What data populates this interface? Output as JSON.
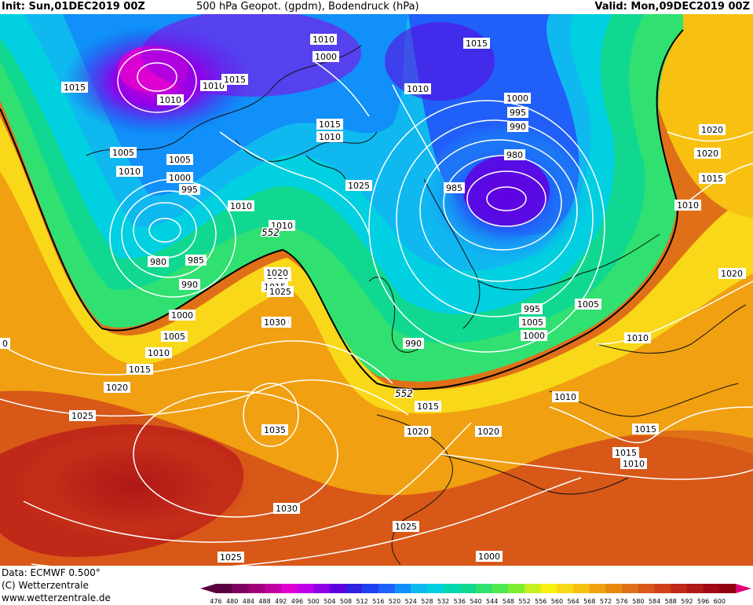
{
  "header": {
    "init": "Init: Sun,01DEC2019 00Z",
    "title": "500 hPa Geopot. (gpdm), Bodendruck (hPa)",
    "valid": "Valid: Mon,09DEC2019 00Z"
  },
  "footer": {
    "data": "Data: ECMWF   0.500°",
    "copyright": "(C) Wetterzentrale",
    "url": "www.wetterzentrale.de"
  },
  "colorbar": {
    "levels": [
      "476",
      "480",
      "484",
      "488",
      "492",
      "496",
      "500",
      "504",
      "508",
      "512",
      "516",
      "520",
      "524",
      "528",
      "532",
      "536",
      "540",
      "544",
      "548",
      "552",
      "556",
      "560",
      "564",
      "568",
      "572",
      "576",
      "580",
      "584",
      "588",
      "592",
      "596",
      "600"
    ],
    "colors": [
      "#5a0040",
      "#800060",
      "#a0007a",
      "#c000a0",
      "#e000d0",
      "#c000e8",
      "#9000e8",
      "#6000e0",
      "#3020e0",
      "#2040f0",
      "#2060f8",
      "#1090f8",
      "#10b8f0",
      "#00d0e0",
      "#00d8b0",
      "#10d890",
      "#30e070",
      "#50e850",
      "#80ee30",
      "#c8f020",
      "#f8f010",
      "#f8d818",
      "#f8c010",
      "#f0a010",
      "#e88810",
      "#e07018",
      "#d85818",
      "#d04018",
      "#c02818",
      "#b01818",
      "#a00818",
      "#900010"
    ],
    "arrow_left_color": "#5a0040",
    "arrow_right_color": "#e0007a"
  },
  "map": {
    "isobar_labels": [
      "1015",
      "1010",
      "1000",
      "1010",
      "1015",
      "1010",
      "1015",
      "1010",
      "1000",
      "995",
      "990",
      "980",
      "985",
      "1005",
      "1010",
      "1005",
      "1000",
      "995",
      "1010",
      "1015",
      "1010",
      "980",
      "985",
      "990",
      "1000",
      "1005",
      "1010",
      "1015",
      "1020",
      "1025",
      "1030",
      "1035",
      "1030",
      "1025",
      "1020",
      "1015",
      "1010",
      "1005",
      "1000",
      "995",
      "990",
      "1000",
      "1005",
      "1010",
      "1015",
      "1020",
      "1025",
      "1020",
      "1015",
      "1010",
      "1010",
      "1010",
      "1015",
      "1020",
      "1025",
      "1020",
      "1025",
      "1015",
      "1010",
      "1025",
      "1030",
      "1020",
      "1025",
      "1035",
      "0"
    ],
    "geopot_labels": [
      "552",
      "552"
    ]
  }
}
